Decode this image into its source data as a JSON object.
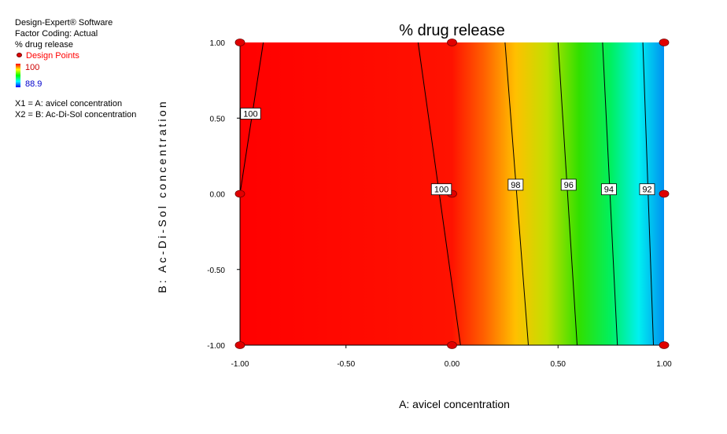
{
  "side_info": {
    "software": "Design-Expert® Software",
    "factor_coding": "Factor Coding: Actual",
    "response": "% drug release",
    "design_points_label": "Design Points",
    "scale_high": "100",
    "scale_low": "88.9",
    "x1_label": "X1 = A: avicel concentration",
    "x2_label": "X2 = B: Ac-Di-Sol concentration"
  },
  "colors": {
    "scale": [
      "#ff0000",
      "#ff8000",
      "#ffff00",
      "#00ff00",
      "#00ffff",
      "#0080ff",
      "#0000ff"
    ],
    "design_point": "#e00000"
  },
  "chart_data": {
    "type": "contour",
    "title": "% drug release",
    "xlabel": "A: avicel concentration",
    "ylabel": "B: Ac-Di-Sol concentration",
    "xlim": [
      -1.0,
      1.0
    ],
    "ylim": [
      -1.0,
      1.0
    ],
    "x_ticks": [
      "-1.00",
      "-0.50",
      "0.00",
      "0.50",
      "1.00"
    ],
    "y_ticks": [
      "1.00",
      "0.50",
      "0.00",
      "-0.50",
      "-1.00"
    ],
    "color_range": [
      88.9,
      100
    ],
    "fill_gradient": [
      {
        "x": -1.0,
        "color": "#ff0000"
      },
      {
        "x": 0.0,
        "color": "#ff1200"
      },
      {
        "x": 0.15,
        "color": "#ff6000"
      },
      {
        "x": 0.3,
        "color": "#ffc000"
      },
      {
        "x": 0.45,
        "color": "#c0e000"
      },
      {
        "x": 0.6,
        "color": "#30e000"
      },
      {
        "x": 0.75,
        "color": "#00f060"
      },
      {
        "x": 0.88,
        "color": "#00f0f0"
      },
      {
        "x": 1.0,
        "color": "#0090f0"
      }
    ],
    "contours": [
      {
        "value": 100,
        "label": "100",
        "points": [
          [
            -1.0,
            0.0
          ],
          [
            -0.89,
            1.0
          ]
        ],
        "label_at": [
          -0.95,
          0.53
        ]
      },
      {
        "value": 100,
        "label": "100",
        "points": [
          [
            -0.16,
            1.0
          ],
          [
            0.04,
            -1.0
          ]
        ],
        "label_at": [
          -0.05,
          0.03
        ]
      },
      {
        "value": 98,
        "label": "98",
        "points": [
          [
            0.25,
            1.0
          ],
          [
            0.36,
            -1.0
          ]
        ],
        "label_at": [
          0.3,
          0.06
        ]
      },
      {
        "value": 96,
        "label": "96",
        "points": [
          [
            0.5,
            1.0
          ],
          [
            0.59,
            -1.0
          ]
        ],
        "label_at": [
          0.55,
          0.06
        ]
      },
      {
        "value": 94,
        "label": "94",
        "points": [
          [
            0.71,
            1.0
          ],
          [
            0.78,
            -1.0
          ]
        ],
        "label_at": [
          0.74,
          0.03
        ]
      },
      {
        "value": 92,
        "label": "92",
        "points": [
          [
            0.9,
            1.0
          ],
          [
            0.95,
            -1.0
          ]
        ],
        "label_at": [
          0.92,
          0.03
        ]
      }
    ],
    "design_points": [
      [
        -1.0,
        1.0
      ],
      [
        0.0,
        1.0
      ],
      [
        1.0,
        1.0
      ],
      [
        -1.0,
        0.0
      ],
      [
        0.0,
        0.0
      ],
      [
        1.0,
        0.0
      ],
      [
        -1.0,
        -1.0
      ],
      [
        0.0,
        -1.0
      ],
      [
        1.0,
        -1.0
      ]
    ]
  }
}
